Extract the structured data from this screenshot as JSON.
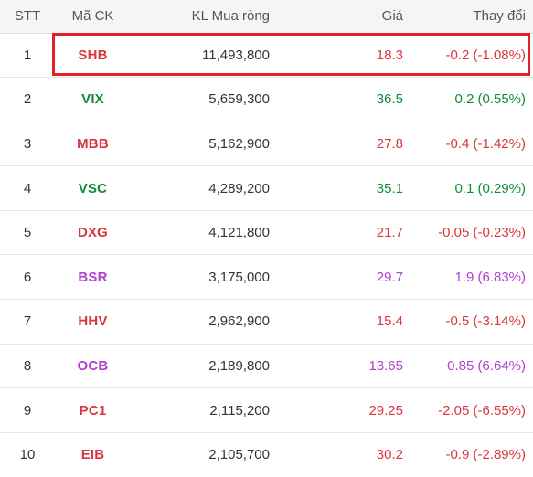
{
  "columns": {
    "stt": "STT",
    "ma_ck": "Mã CK",
    "kl_mua_rong": "KL Mua ròng",
    "gia": "Giá",
    "thay_doi": "Thay đổi"
  },
  "colors": {
    "up": "#0f8b3a",
    "down": "#d9363e",
    "ceiling": "#b23fd0",
    "highlight_border": "#e1202b"
  },
  "rows": [
    {
      "stt": "1",
      "ma_ck": "SHB",
      "kl": "11,493,800",
      "gia": "18.3",
      "thay_doi": "-0.2 (-1.08%)",
      "trend": "down"
    },
    {
      "stt": "2",
      "ma_ck": "VIX",
      "kl": "5,659,300",
      "gia": "36.5",
      "thay_doi": "0.2 (0.55%)",
      "trend": "up"
    },
    {
      "stt": "3",
      "ma_ck": "MBB",
      "kl": "5,162,900",
      "gia": "27.8",
      "thay_doi": "-0.4 (-1.42%)",
      "trend": "down"
    },
    {
      "stt": "4",
      "ma_ck": "VSC",
      "kl": "4,289,200",
      "gia": "35.1",
      "thay_doi": "0.1 (0.29%)",
      "trend": "up"
    },
    {
      "stt": "5",
      "ma_ck": "DXG",
      "kl": "4,121,800",
      "gia": "21.7",
      "thay_doi": "-0.05 (-0.23%)",
      "trend": "down"
    },
    {
      "stt": "6",
      "ma_ck": "BSR",
      "kl": "3,175,000",
      "gia": "29.7",
      "thay_doi": "1.9 (6.83%)",
      "trend": "ceiling"
    },
    {
      "stt": "7",
      "ma_ck": "HHV",
      "kl": "2,962,900",
      "gia": "15.4",
      "thay_doi": "-0.5 (-3.14%)",
      "trend": "down"
    },
    {
      "stt": "8",
      "ma_ck": "OCB",
      "kl": "2,189,800",
      "gia": "13.65",
      "thay_doi": "0.85 (6.64%)",
      "trend": "ceiling"
    },
    {
      "stt": "9",
      "ma_ck": "PC1",
      "kl": "2,115,200",
      "gia": "29.25",
      "thay_doi": "-2.05 (-6.55%)",
      "trend": "down"
    },
    {
      "stt": "10",
      "ma_ck": "EIB",
      "kl": "2,105,700",
      "gia": "30.2",
      "thay_doi": "-0.9 (-2.89%)",
      "trend": "down"
    }
  ]
}
